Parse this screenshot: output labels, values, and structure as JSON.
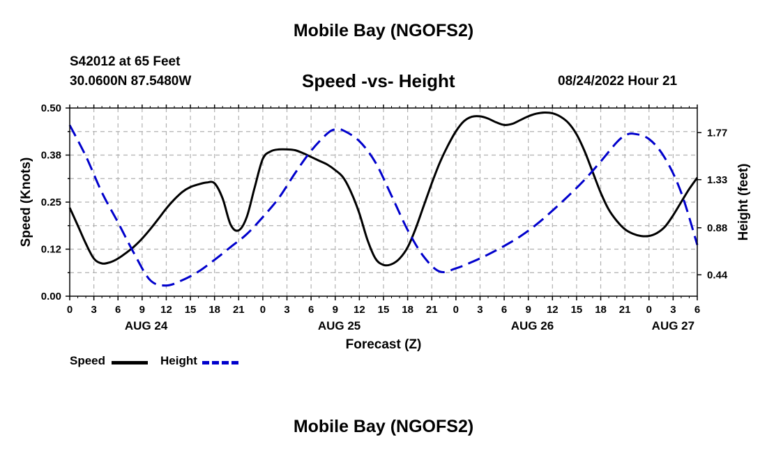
{
  "title": "Mobile Bay (NGOFS2)",
  "bottom_title": "Mobile Bay (NGOFS2)",
  "station": "S42012 at 65 Feet",
  "coordinates": "30.0600N  87.5480W",
  "subtitle": "Speed -vs- Height",
  "date": "08/24/2022 Hour 21",
  "colors": {
    "speed": "#000000",
    "height": "#0000cc",
    "grid": "#b0b0b0"
  },
  "chart_data": {
    "type": "line",
    "title": "Speed -vs- Height",
    "xlabel": "Forecast (Z)",
    "ylabel": "Speed (Knots)",
    "y2label": "Height (feet)",
    "x_unit": "hours from Aug 24 00Z",
    "xlim": [
      0,
      78
    ],
    "ylim": [
      0.0,
      0.5
    ],
    "y2lim": [
      0.24,
      2.0
    ],
    "x_ticks": [
      0,
      3,
      6,
      9,
      12,
      15,
      18,
      21,
      24,
      27,
      30,
      33,
      36,
      39,
      42,
      45,
      48,
      51,
      54,
      57,
      60,
      63,
      66,
      69,
      72,
      75,
      78
    ],
    "x_tick_labels": [
      "0",
      "3",
      "6",
      "9",
      "12",
      "15",
      "18",
      "21",
      "0",
      "3",
      "6",
      "9",
      "12",
      "15",
      "18",
      "21",
      "0",
      "3",
      "6",
      "9",
      "12",
      "15",
      "18",
      "21",
      "0",
      "3",
      "6"
    ],
    "y_ticks": [
      0.0,
      0.125,
      0.25,
      0.375,
      0.5
    ],
    "y_tick_labels": [
      "0.00",
      "0.12",
      "0.25",
      "0.38",
      "0.50"
    ],
    "y2_ticks": [
      0.44,
      0.88,
      1.33,
      1.77
    ],
    "y2_tick_labels": [
      "0.44",
      "0.88",
      "1.33",
      "1.77"
    ],
    "date_labels": [
      {
        "x": 9.5,
        "label": "AUG 24"
      },
      {
        "x": 33.5,
        "label": "AUG 25"
      },
      {
        "x": 57.5,
        "label": "AUG 26"
      },
      {
        "x": 75,
        "label": "AUG 27"
      }
    ],
    "legend": [
      "Speed",
      "Height"
    ],
    "series": [
      {
        "name": "Speed",
        "axis": "left",
        "style": "solid",
        "x": [
          0,
          1,
          2,
          3,
          4,
          5,
          6,
          7,
          8,
          9,
          10,
          11,
          12,
          13,
          14,
          15,
          16,
          17,
          18,
          19,
          20,
          21,
          22,
          23,
          24,
          25,
          26,
          27,
          28,
          29,
          30,
          31,
          32,
          33,
          34,
          35,
          36,
          37,
          38,
          39,
          40,
          41,
          42,
          43,
          44,
          45,
          46,
          47,
          48,
          49,
          50,
          51,
          52,
          53,
          54,
          55,
          56,
          57,
          58,
          59,
          60,
          61,
          62,
          63,
          64,
          65,
          66,
          67,
          68,
          69,
          70,
          71,
          72,
          73,
          74,
          75,
          76,
          77,
          78
        ],
        "values": [
          0.235,
          0.188,
          0.14,
          0.1,
          0.087,
          0.09,
          0.1,
          0.115,
          0.132,
          0.153,
          0.178,
          0.205,
          0.233,
          0.257,
          0.277,
          0.29,
          0.297,
          0.302,
          0.3,
          0.26,
          0.19,
          0.175,
          0.21,
          0.29,
          0.365,
          0.385,
          0.39,
          0.39,
          0.388,
          0.38,
          0.37,
          0.36,
          0.35,
          0.335,
          0.315,
          0.275,
          0.22,
          0.15,
          0.1,
          0.083,
          0.085,
          0.1,
          0.13,
          0.18,
          0.24,
          0.3,
          0.355,
          0.4,
          0.438,
          0.465,
          0.477,
          0.478,
          0.472,
          0.462,
          0.455,
          0.458,
          0.468,
          0.478,
          0.485,
          0.488,
          0.486,
          0.477,
          0.46,
          0.43,
          0.385,
          0.33,
          0.275,
          0.23,
          0.2,
          0.178,
          0.166,
          0.16,
          0.16,
          0.168,
          0.185,
          0.215,
          0.25,
          0.285,
          0.315
        ]
      },
      {
        "name": "Height",
        "axis": "right",
        "style": "dashed",
        "x": [
          0,
          2,
          4,
          6,
          8,
          10,
          12,
          14,
          16,
          18,
          20,
          22,
          24,
          26,
          28,
          30,
          32,
          33,
          34,
          36,
          38,
          40,
          42,
          44,
          46,
          48,
          50,
          52,
          54,
          56,
          58,
          60,
          62,
          64,
          66,
          68,
          69,
          70,
          72,
          74,
          76,
          78
        ],
        "values": [
          1.84,
          1.55,
          1.21,
          0.93,
          0.64,
          0.39,
          0.34,
          0.39,
          0.47,
          0.58,
          0.7,
          0.82,
          0.98,
          1.16,
          1.39,
          1.6,
          1.76,
          1.8,
          1.79,
          1.69,
          1.49,
          1.18,
          0.86,
          0.61,
          0.47,
          0.5,
          0.56,
          0.63,
          0.71,
          0.8,
          0.91,
          1.04,
          1.18,
          1.33,
          1.5,
          1.68,
          1.74,
          1.76,
          1.71,
          1.53,
          1.21,
          0.72
        ]
      }
    ]
  }
}
